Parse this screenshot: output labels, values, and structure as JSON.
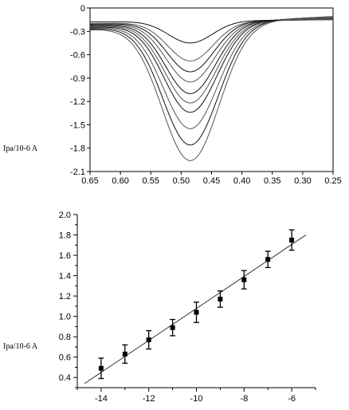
{
  "chart_data": [
    {
      "type": "line",
      "ylabel": "Ipa/10-6 A",
      "xlabel": "",
      "xlim": [
        0.65,
        0.25
      ],
      "ylim": [
        -2.1,
        0
      ],
      "x_ticks": [
        "0.65",
        "0.60",
        "0.55",
        "0.50",
        "0.45",
        "0.40",
        "0.35",
        "0.30",
        "0.25"
      ],
      "y_ticks": [
        "0",
        "-0.3",
        "-0.6",
        "-0.9",
        "-1.2",
        "-1.5",
        "-1.8",
        "-2.1"
      ],
      "peak_potential": 0.485,
      "series": [
        {
          "peak": -0.45,
          "start": -0.18,
          "end": -0.15
        },
        {
          "peak": -0.68,
          "start": -0.2,
          "end": -0.15
        },
        {
          "peak": -0.82,
          "start": -0.21,
          "end": -0.14
        },
        {
          "peak": -0.95,
          "start": -0.22,
          "end": -0.14
        },
        {
          "peak": -1.1,
          "start": -0.23,
          "end": -0.13
        },
        {
          "peak": -1.22,
          "start": -0.24,
          "end": -0.13
        },
        {
          "peak": -1.34,
          "start": -0.25,
          "end": -0.12
        },
        {
          "peak": -1.55,
          "start": -0.26,
          "end": -0.12
        },
        {
          "peak": -1.76,
          "start": -0.27,
          "end": -0.11
        },
        {
          "peak": -1.96,
          "start": -0.28,
          "end": -0.11
        }
      ]
    },
    {
      "type": "scatter",
      "ylabel": "Ipa/10-6 A",
      "xlabel": "",
      "xlim": [
        -15,
        -5
      ],
      "ylim": [
        0.3,
        2.0
      ],
      "x_ticks": [
        "-14",
        "-12",
        "-10",
        "-8",
        "-6"
      ],
      "y_ticks": [
        "0.4",
        "0.6",
        "0.8",
        "1.0",
        "1.2",
        "1.4",
        "1.6",
        "1.8",
        "2.0"
      ],
      "points": [
        {
          "x": -14,
          "y": 0.49,
          "err": 0.1
        },
        {
          "x": -13,
          "y": 0.63,
          "err": 0.09
        },
        {
          "x": -12,
          "y": 0.77,
          "err": 0.09
        },
        {
          "x": -11,
          "y": 0.89,
          "err": 0.08
        },
        {
          "x": -10,
          "y": 1.04,
          "err": 0.1
        },
        {
          "x": -9,
          "y": 1.17,
          "err": 0.08
        },
        {
          "x": -8,
          "y": 1.36,
          "err": 0.09
        },
        {
          "x": -7,
          "y": 1.56,
          "err": 0.08
        },
        {
          "x": -6,
          "y": 1.75,
          "err": 0.1
        }
      ],
      "fit_line": {
        "x": [
          -14.7,
          -5.4
        ],
        "y": [
          0.34,
          1.8
        ]
      }
    }
  ]
}
